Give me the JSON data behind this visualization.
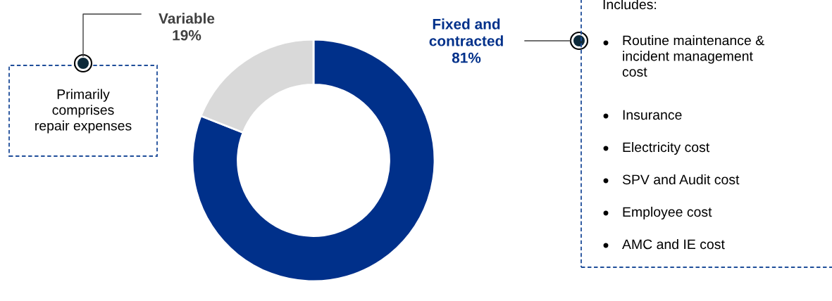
{
  "chart_data": {
    "type": "donut",
    "categories": [
      "Fixed and\ncontracted",
      "Variable"
    ],
    "values": [
      81,
      19
    ],
    "value_labels": [
      "81%",
      "19%"
    ],
    "colors": [
      "#00308a",
      "#d9d9d9"
    ],
    "annotations": [
      "Primarily\ncomprises\nrepair expenses",
      "Includes:",
      "Routine maintenance &\nincident management\ncost",
      "Insurance",
      "Electricity cost",
      "SPV and Audit cost",
      "Employee cost",
      "AMC and IE cost"
    ],
    "legend": false
  }
}
